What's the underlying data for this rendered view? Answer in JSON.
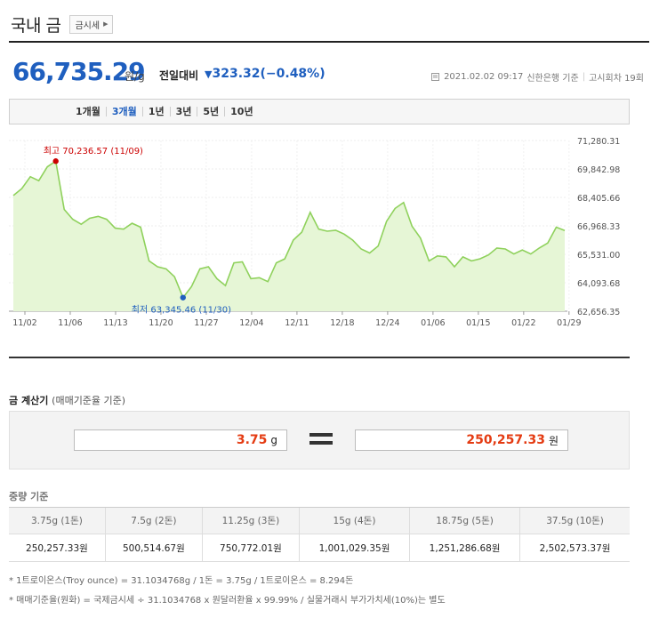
{
  "header": {
    "title": "국내 금",
    "sise_button": "금시세"
  },
  "price": {
    "value": "66,735.29",
    "unit": "원/g",
    "compare_label": "전일대비",
    "change_arrow": "▼",
    "change": "323.32",
    "change_pct": "(−0.48%)",
    "datetime": "2021.02.02 09:17",
    "source": "신한은행 기준",
    "round": "고시회차 19회"
  },
  "periods": [
    {
      "label": "1개월",
      "active": false
    },
    {
      "label": "3개월",
      "active": true
    },
    {
      "label": "1년",
      "active": false
    },
    {
      "label": "3년",
      "active": false
    },
    {
      "label": "5년",
      "active": false
    },
    {
      "label": "10년",
      "active": false
    }
  ],
  "chart_data": {
    "type": "area",
    "x_labels": [
      "11/02",
      "11/06",
      "11/13",
      "11/20",
      "11/27",
      "12/04",
      "12/11",
      "12/18",
      "12/24",
      "01/06",
      "01/15",
      "01/22",
      "01/29"
    ],
    "y_ticks": [
      "71,280.31",
      "69,842.98",
      "68,405.66",
      "66,968.33",
      "65,531.00",
      "64,093.68",
      "62,656.35"
    ],
    "ylim": [
      62656.35,
      71280.31
    ],
    "values": [
      68500,
      68850,
      69450,
      69250,
      69950,
      70236.57,
      67800,
      67300,
      67050,
      67350,
      67450,
      67300,
      66850,
      66800,
      67100,
      66900,
      65200,
      64900,
      64800,
      64400,
      63345.46,
      63900,
      64800,
      64900,
      64300,
      63950,
      65100,
      65150,
      64300,
      64350,
      64150,
      65100,
      65300,
      66250,
      66650,
      67650,
      66800,
      66700,
      66750,
      66550,
      66250,
      65800,
      65600,
      65950,
      67200,
      67850,
      68150,
      66950,
      66350,
      65200,
      65450,
      65400,
      64900,
      65400,
      65200,
      65300,
      65500,
      65850,
      65800,
      65550,
      65750,
      65550,
      65850,
      66100,
      66900,
      66735.29
    ],
    "high": {
      "label": "최고",
      "value": "70,236.57",
      "date": "(11/09)"
    },
    "low": {
      "label": "최저",
      "value": "63,345.46",
      "date": "(11/30)"
    },
    "colors": {
      "line": "#8fd15c",
      "fill": "#e6f6d6",
      "high": "#cc0000",
      "low": "#1f5fbf"
    }
  },
  "calculator": {
    "title": "금 계산기",
    "subtitle": "(매매기준율 기준)",
    "weight_value": "3.75",
    "weight_unit": "g",
    "result_value": "250,257.33",
    "result_unit": "원"
  },
  "weight_table": {
    "title": "중량 기준",
    "headers": [
      "3.75g (1돈)",
      "7.5g (2돈)",
      "11.25g (3돈)",
      "15g (4돈)",
      "18.75g (5돈)",
      "37.5g (10돈)"
    ],
    "values": [
      "250,257.33원",
      "500,514.67원",
      "750,772.01원",
      "1,001,029.35원",
      "1,251,286.68원",
      "2,502,573.37원"
    ]
  },
  "notes": [
    "* 1트로이온스(Troy ounce) = 31.1034768g / 1돈 = 3.75g / 1트로이온스 = 8.294돈",
    "* 매매기준율(원화) = 국제금시세 ÷ 31.1034768 x 원달러환율 x 99.99% / 실물거래시 부가가치세(10%)는 별도"
  ]
}
